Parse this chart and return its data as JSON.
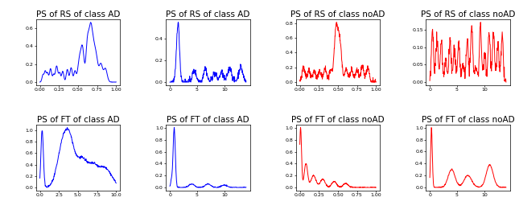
{
  "titles": [
    [
      "PS of RS of class AD",
      "PS of RS of class AD",
      "PS of RS of class noAD",
      "PS of RS of class noAD"
    ],
    [
      "PS of FT of class AD",
      "PS of FT of class AD",
      "PS of FT of class noAD",
      "PS of FT of class noAD"
    ]
  ],
  "colors": [
    [
      "blue",
      "blue",
      "red",
      "red"
    ],
    [
      "blue",
      "blue",
      "red",
      "red"
    ]
  ],
  "title_fontsize": 7.5,
  "tick_fontsize": 4.5,
  "figsize": [
    6.4,
    2.66
  ],
  "dpi": 100
}
